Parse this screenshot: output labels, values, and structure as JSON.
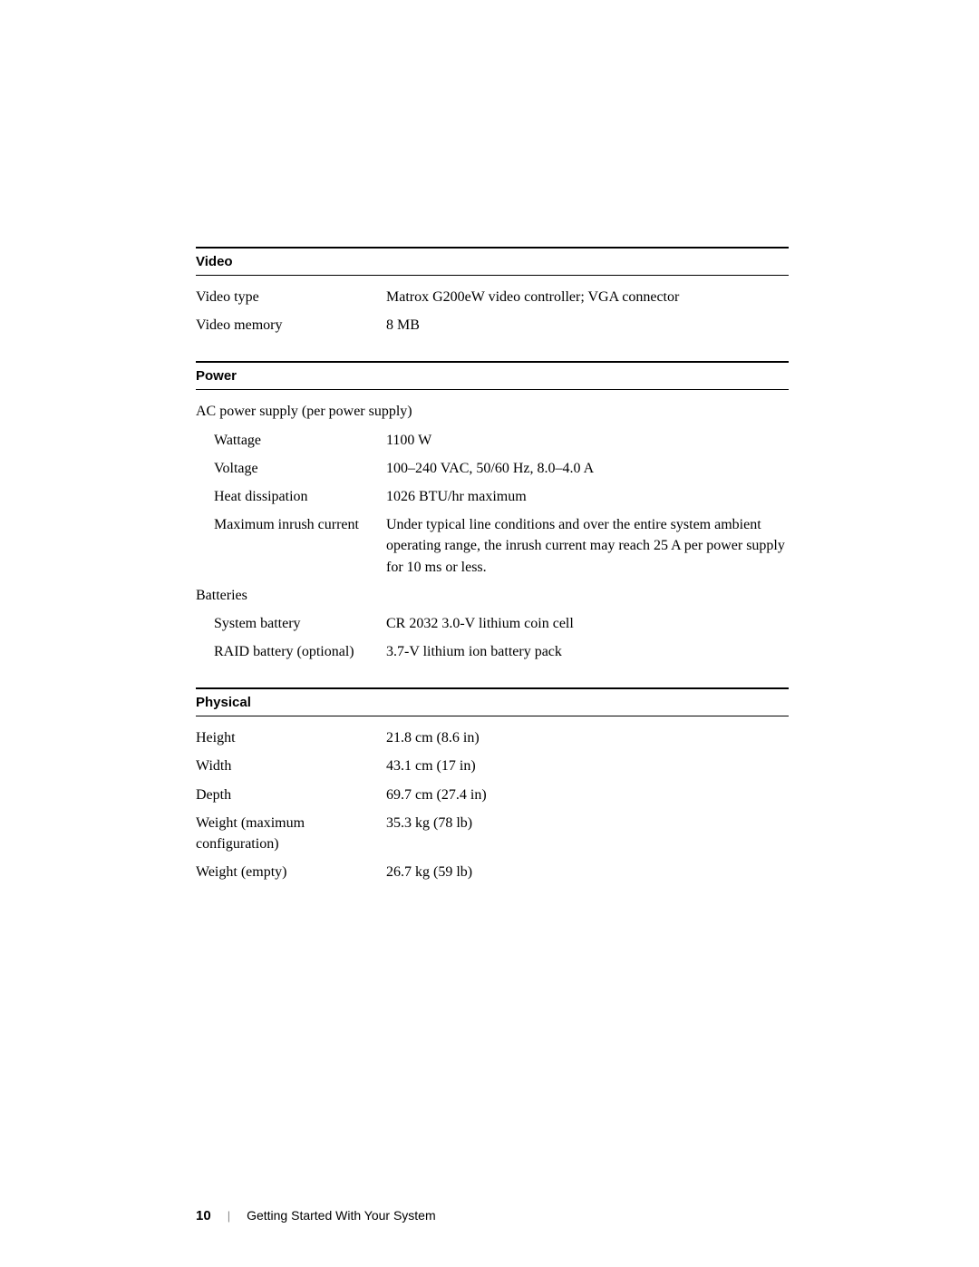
{
  "sections": {
    "video": {
      "title": "Video",
      "rows": [
        {
          "label": "Video type",
          "value": "Matrox G200eW video controller; VGA connector"
        },
        {
          "label": "Video memory",
          "value": "8 MB"
        }
      ]
    },
    "power": {
      "title": "Power",
      "subheader1": "AC power supply (per power supply)",
      "ac_rows": [
        {
          "label": "Wattage",
          "value": "1100 W"
        },
        {
          "label": "Voltage",
          "value": "100–240 VAC, 50/60 Hz, 8.0–4.0 A"
        },
        {
          "label": "Heat dissipation",
          "value": "1026 BTU/hr maximum"
        },
        {
          "label": "Maximum inrush current",
          "value": "Under typical line conditions and over the entire system ambient operating range, the inrush current may reach 25 A per power supply for 10 ms or less."
        }
      ],
      "subheader2": "Batteries",
      "battery_rows": [
        {
          "label": "System battery",
          "value": "CR 2032 3.0-V lithium coin cell"
        },
        {
          "label": "RAID battery (optional)",
          "value": "3.7-V lithium ion battery pack"
        }
      ]
    },
    "physical": {
      "title": "Physical",
      "rows": [
        {
          "label": "Height",
          "value": "21.8 cm (8.6 in)"
        },
        {
          "label": "Width",
          "value": "43.1 cm (17 in)"
        },
        {
          "label": "Depth",
          "value": "69.7 cm (27.4 in)"
        },
        {
          "label": "Weight (maximum configuration)",
          "value": "35.3 kg (78 lb)"
        },
        {
          "label": "Weight (empty)",
          "value": "26.7 kg (59 lb)"
        }
      ]
    }
  },
  "footer": {
    "page_number": "10",
    "divider": "|",
    "text": "Getting Started With Your System"
  }
}
